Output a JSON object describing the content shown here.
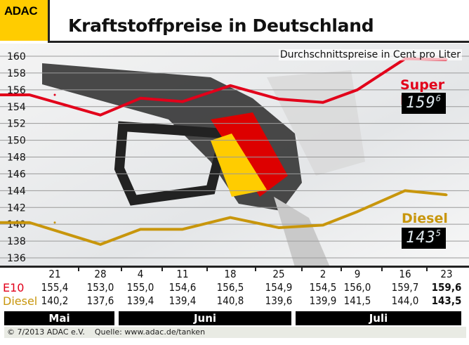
{
  "header": {
    "logo": "ADAC",
    "title": "Kraftstoffpreise in Deutschland"
  },
  "chart_data": {
    "type": "line",
    "title": "Kraftstoffpreise in Deutschland",
    "subtitle": "Durchschnittspreise in Cent pro Liter",
    "ylim": [
      136,
      160
    ],
    "yticks": [
      136,
      138,
      140,
      142,
      144,
      146,
      148,
      150,
      152,
      154,
      156,
      158,
      160
    ],
    "grid": true,
    "categories": [
      "21",
      "28",
      "4",
      "11",
      "18",
      "25",
      "2",
      "9",
      "16",
      "23"
    ],
    "months": [
      {
        "label": "Mai",
        "span": 2
      },
      {
        "label": "Juni",
        "span": 4
      },
      {
        "label": "Juli",
        "span": 4
      }
    ],
    "series": [
      {
        "name": "Super E10",
        "row_label": "E10",
        "color": "#e2001a",
        "values": [
          155.4,
          153.0,
          155.0,
          154.6,
          156.5,
          154.9,
          154.5,
          156.0,
          159.7,
          159.6
        ],
        "display": "159",
        "display_sup": "6"
      },
      {
        "name": "Diesel",
        "row_label": "Diesel",
        "color": "#c8960c",
        "values": [
          140.2,
          137.6,
          139.4,
          139.4,
          140.8,
          139.6,
          139.9,
          141.5,
          144.0,
          143.5
        ],
        "display": "143",
        "display_sup": "5"
      }
    ],
    "value_labels": {
      "E10": [
        "155,4",
        "153,0",
        "155,0",
        "154,6",
        "156,5",
        "154,9",
        "154,5",
        "156,0",
        "159,7",
        "159,6"
      ],
      "Diesel": [
        "140,2",
        "137,6",
        "139,4",
        "139,4",
        "140,8",
        "139,6",
        "139,9",
        "141,5",
        "144,0",
        "143,5"
      ]
    }
  },
  "footer": {
    "copyright": "© 7/2013  ADAC e.V.",
    "source": "Quelle: www.adac.de/tanken"
  }
}
